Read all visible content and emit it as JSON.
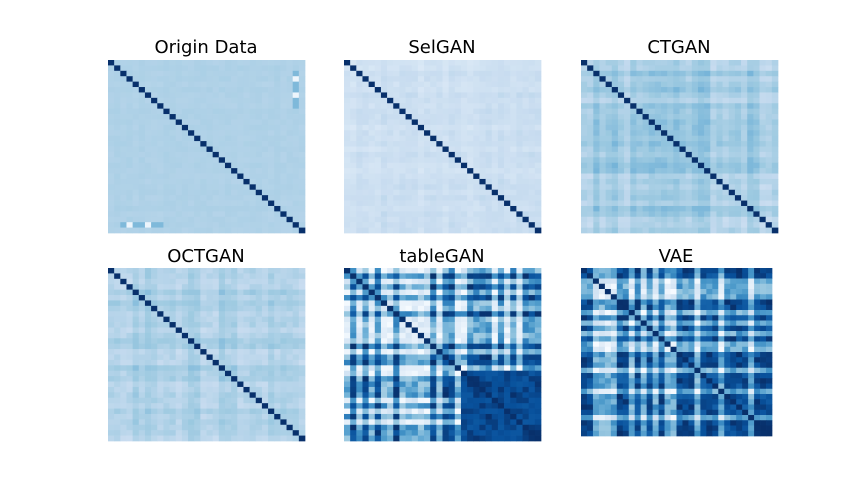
{
  "chart_data": [
    {
      "type": "heatmap",
      "title": "Origin Data",
      "n": 32,
      "style": "origin",
      "colormap": "Blues",
      "vmin": 0,
      "vmax": 1,
      "diagonal_value": 1.0
    },
    {
      "type": "heatmap",
      "title": "SelGAN",
      "n": 32,
      "style": "selgan",
      "colormap": "Blues",
      "vmin": 0,
      "vmax": 1,
      "diagonal_value": 1.0
    },
    {
      "type": "heatmap",
      "title": "CTGAN",
      "n": 32,
      "style": "ctgan",
      "colormap": "Blues",
      "vmin": 0,
      "vmax": 1,
      "diagonal_value": 1.0
    },
    {
      "type": "heatmap",
      "title": "OCTGAN",
      "n": 32,
      "style": "octgan",
      "colormap": "Blues",
      "vmin": 0,
      "vmax": 1,
      "diagonal_value": 1.0
    },
    {
      "type": "heatmap",
      "title": "tableGAN",
      "n": 32,
      "style": "tablegan",
      "colormap": "Blues",
      "vmin": 0,
      "vmax": 1,
      "diagonal_value": 1.0
    },
    {
      "type": "heatmap",
      "title": "VAE",
      "n": 32,
      "style": "vae",
      "colormap": "Blues",
      "vmin": 0,
      "vmax": 1,
      "diagonal_value": 1.0
    }
  ]
}
